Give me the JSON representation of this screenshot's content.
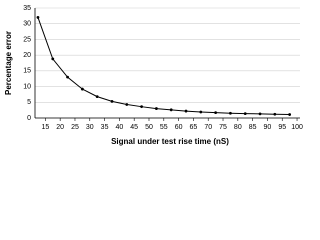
{
  "chart_data": {
    "type": "line",
    "x_label": "Signal under test rise time (nS)",
    "y_label": "Percentage error",
    "x": [
      12.5,
      17.5,
      22.5,
      27.5,
      32.5,
      37.5,
      42.5,
      47.5,
      52.5,
      57.5,
      62.5,
      67.5,
      72.5,
      77.5,
      82.5,
      87.5,
      92.5,
      97.5
    ],
    "series": [
      {
        "color": "#000000",
        "values": [
          32,
          18.8,
          13,
          9.2,
          6.8,
          5.3,
          4.3,
          3.6,
          3.0,
          2.6,
          2.2,
          1.9,
          1.7,
          1.5,
          1.4,
          1.3,
          1.2,
          1.1
        ]
      }
    ],
    "xlim": [
      11.5,
      101
    ],
    "xticks": [
      15,
      20,
      25,
      30,
      35,
      40,
      45,
      50,
      55,
      60,
      65,
      70,
      75,
      80,
      85,
      90,
      95,
      100
    ],
    "ylim": [
      0,
      35
    ],
    "yticks": [
      0,
      5,
      10,
      15,
      20,
      25,
      30,
      35
    ],
    "grid": true
  }
}
